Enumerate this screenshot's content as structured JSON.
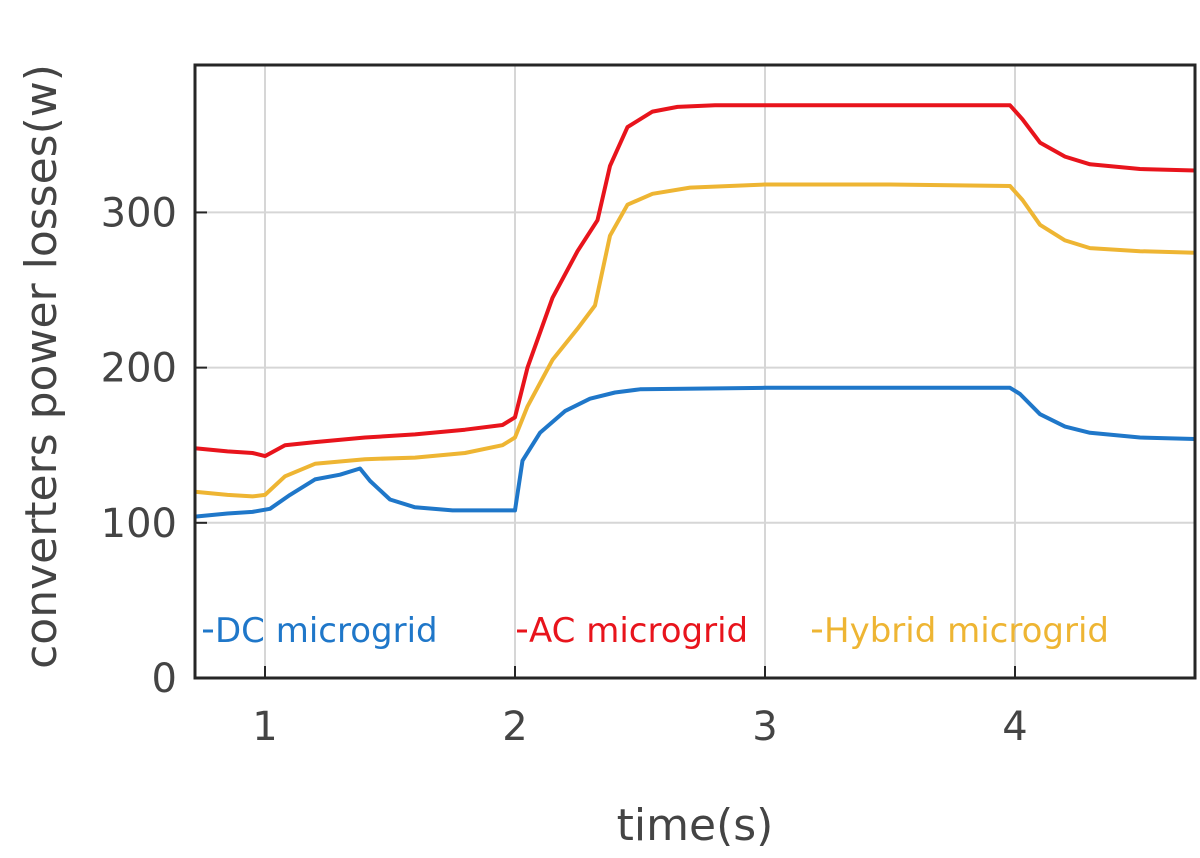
{
  "chart_data": {
    "type": "line",
    "xlabel": "time(s)",
    "ylabel": "converters power losses(w)",
    "xlim": [
      0.72,
      4.72
    ],
    "ylim": [
      0,
      395
    ],
    "xticks": [
      1,
      2,
      3,
      4
    ],
    "yticks": [
      0,
      100,
      200,
      300
    ],
    "grid": true,
    "legend_position": "bottom",
    "series": [
      {
        "name": "DC microgrid",
        "color": "#1f77c9",
        "x": [
          0.72,
          0.85,
          0.95,
          1.02,
          1.1,
          1.2,
          1.3,
          1.38,
          1.42,
          1.5,
          1.6,
          1.75,
          1.9,
          2.0,
          2.03,
          2.1,
          2.2,
          2.3,
          2.4,
          2.5,
          3.0,
          3.5,
          3.98,
          4.02,
          4.1,
          4.2,
          4.3,
          4.5,
          4.72
        ],
        "y": [
          104,
          106,
          107,
          109,
          118,
          128,
          131,
          135,
          127,
          115,
          110,
          108,
          108,
          108,
          140,
          158,
          172,
          180,
          184,
          186,
          187,
          187,
          187,
          183,
          170,
          162,
          158,
          155,
          154
        ]
      },
      {
        "name": "AC microgrid",
        "color": "#e8141c",
        "x": [
          0.72,
          0.85,
          0.95,
          1.0,
          1.08,
          1.2,
          1.4,
          1.6,
          1.8,
          1.95,
          2.0,
          2.05,
          2.15,
          2.25,
          2.33,
          2.38,
          2.45,
          2.55,
          2.65,
          2.8,
          3.0,
          3.5,
          3.98,
          4.03,
          4.1,
          4.2,
          4.3,
          4.5,
          4.72
        ],
        "y": [
          148,
          146,
          145,
          143,
          150,
          152,
          155,
          157,
          160,
          163,
          168,
          200,
          245,
          275,
          295,
          330,
          355,
          365,
          368,
          369,
          369,
          369,
          369,
          360,
          345,
          336,
          331,
          328,
          327
        ]
      },
      {
        "name": "Hybrid microgrid",
        "color": "#eeb533",
        "x": [
          0.72,
          0.85,
          0.95,
          1.0,
          1.08,
          1.2,
          1.4,
          1.6,
          1.8,
          1.95,
          2.0,
          2.05,
          2.15,
          2.25,
          2.32,
          2.38,
          2.45,
          2.55,
          2.7,
          3.0,
          3.5,
          3.98,
          4.03,
          4.1,
          4.2,
          4.3,
          4.5,
          4.72
        ],
        "y": [
          120,
          118,
          117,
          118,
          130,
          138,
          141,
          142,
          145,
          150,
          155,
          175,
          205,
          225,
          240,
          285,
          305,
          312,
          316,
          318,
          318,
          317,
          308,
          292,
          282,
          277,
          275,
          274
        ]
      }
    ]
  }
}
